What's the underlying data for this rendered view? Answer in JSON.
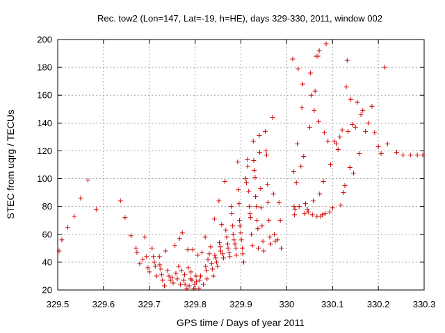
{
  "chart_data": {
    "type": "scatter",
    "title": "Rec. tow2 (Lon=147, Lat=-19, h=HE), days 329-330, 2011, window 002",
    "xlabel": "GPS time / Days of year 2011",
    "ylabel": "STEC from uqrg / TECUs",
    "xlim": [
      329.5,
      330.3
    ],
    "ylim": [
      20,
      200
    ],
    "xticks": [
      329.5,
      329.6,
      329.7,
      329.8,
      329.9,
      330,
      330.1,
      330.2,
      330.3
    ],
    "xtick_labels": [
      "329.5",
      "329.6",
      "329.7",
      "329.8",
      "329.9",
      "330",
      "330.1",
      "330.2",
      "330.3"
    ],
    "yticks": [
      20,
      40,
      60,
      80,
      100,
      120,
      140,
      160,
      180,
      200
    ],
    "ytick_labels": [
      "20",
      "40",
      "60",
      "80",
      "100",
      "120",
      "140",
      "160",
      "180",
      "200"
    ],
    "grid": true,
    "marker": "+",
    "color": "#cc0000",
    "points": [
      [
        329.503,
        48
      ],
      [
        329.509,
        56
      ],
      [
        329.522,
        65
      ],
      [
        329.536,
        73
      ],
      [
        329.55,
        86
      ],
      [
        329.566,
        99
      ],
      [
        329.584,
        78
      ],
      [
        329.637,
        84
      ],
      [
        329.647,
        72
      ],
      [
        329.66,
        59
      ],
      [
        329.671,
        50
      ],
      [
        329.673,
        47
      ],
      [
        329.679,
        39
      ],
      [
        329.686,
        42
      ],
      [
        329.69,
        58
      ],
      [
        329.694,
        44
      ],
      [
        329.697,
        36
      ],
      [
        329.7,
        33
      ],
      [
        329.706,
        50
      ],
      [
        329.709,
        44
      ],
      [
        329.711,
        40
      ],
      [
        329.713,
        37
      ],
      [
        329.716,
        30
      ],
      [
        329.722,
        44
      ],
      [
        329.723,
        38
      ],
      [
        329.725,
        35
      ],
      [
        329.727,
        31
      ],
      [
        329.729,
        27
      ],
      [
        329.733,
        23
      ],
      [
        329.736,
        48
      ],
      [
        329.74,
        34
      ],
      [
        329.743,
        30
      ],
      [
        329.746,
        27
      ],
      [
        329.75,
        29
      ],
      [
        329.752,
        25
      ],
      [
        329.756,
        52
      ],
      [
        329.758,
        32
      ],
      [
        329.761,
        28
      ],
      [
        329.764,
        37
      ],
      [
        329.766,
        57
      ],
      [
        329.768,
        24
      ],
      [
        329.77,
        34
      ],
      [
        329.772,
        61
      ],
      [
        329.775,
        27
      ],
      [
        329.777,
        31
      ],
      [
        329.778,
        24
      ],
      [
        329.782,
        21
      ],
      [
        329.784,
        49
      ],
      [
        329.785,
        36
      ],
      [
        329.787,
        23
      ],
      [
        329.79,
        28
      ],
      [
        329.791,
        33
      ],
      [
        329.793,
        27
      ],
      [
        329.795,
        49
      ],
      [
        329.797,
        21
      ],
      [
        329.799,
        24
      ],
      [
        329.802,
        30
      ],
      [
        329.803,
        26
      ],
      [
        329.806,
        45
      ],
      [
        329.808,
        21
      ],
      [
        329.81,
        27
      ],
      [
        329.812,
        30
      ],
      [
        329.815,
        47
      ],
      [
        329.818,
        24
      ],
      [
        329.822,
        58
      ],
      [
        329.823,
        37
      ],
      [
        329.825,
        34
      ],
      [
        329.826,
        28
      ],
      [
        329.828,
        42
      ],
      [
        329.831,
        46
      ],
      [
        329.834,
        51
      ],
      [
        329.836,
        39
      ],
      [
        329.838,
        35
      ],
      [
        329.84,
        30
      ],
      [
        329.842,
        71
      ],
      [
        329.843,
        45
      ],
      [
        329.845,
        43
      ],
      [
        329.847,
        40
      ],
      [
        329.849,
        37
      ],
      [
        329.852,
        84
      ],
      [
        329.853,
        54
      ],
      [
        329.855,
        51
      ],
      [
        329.856,
        48
      ],
      [
        329.858,
        67
      ],
      [
        329.86,
        46
      ],
      [
        329.862,
        43
      ],
      [
        329.865,
        98
      ],
      [
        329.867,
        63
      ],
      [
        329.869,
        58
      ],
      [
        329.871,
        53
      ],
      [
        329.872,
        50
      ],
      [
        329.874,
        47
      ],
      [
        329.876,
        44
      ],
      [
        329.879,
        80
      ],
      [
        329.88,
        75
      ],
      [
        329.882,
        66
      ],
      [
        329.883,
        60
      ],
      [
        329.885,
        56
      ],
      [
        329.887,
        53
      ],
      [
        329.889,
        50
      ],
      [
        329.89,
        45
      ],
      [
        329.893,
        112
      ],
      [
        329.894,
        92
      ],
      [
        329.896,
        82
      ],
      [
        329.897,
        70
      ],
      [
        329.898,
        66
      ],
      [
        329.9,
        61
      ],
      [
        329.901,
        56
      ],
      [
        329.903,
        50
      ],
      [
        329.904,
        46
      ],
      [
        329.906,
        40
      ],
      [
        329.91,
        100
      ],
      [
        329.912,
        97
      ],
      [
        329.914,
        114
      ],
      [
        329.915,
        109
      ],
      [
        329.917,
        91
      ],
      [
        329.918,
        80
      ],
      [
        329.92,
        75
      ],
      [
        329.921,
        72
      ],
      [
        329.923,
        60
      ],
      [
        329.925,
        52
      ],
      [
        329.927,
        127
      ],
      [
        329.928,
        113
      ],
      [
        329.929,
        106
      ],
      [
        329.931,
        101
      ],
      [
        329.932,
        87
      ],
      [
        329.934,
        80
      ],
      [
        329.935,
        70
      ],
      [
        329.937,
        64
      ],
      [
        329.938,
        50
      ],
      [
        329.94,
        131
      ],
      [
        329.941,
        119
      ],
      [
        329.943,
        93
      ],
      [
        329.944,
        79
      ],
      [
        329.946,
        66
      ],
      [
        329.948,
        55
      ],
      [
        329.95,
        48
      ],
      [
        329.953,
        134
      ],
      [
        329.955,
        120
      ],
      [
        329.956,
        117
      ],
      [
        329.958,
        96
      ],
      [
        329.959,
        83
      ],
      [
        329.961,
        70
      ],
      [
        329.963,
        58
      ],
      [
        329.965,
        53
      ],
      [
        329.969,
        144
      ],
      [
        329.971,
        89
      ],
      [
        329.973,
        60
      ],
      [
        329.975,
        55
      ],
      [
        329.98,
        56
      ],
      [
        329.983,
        83
      ],
      [
        329.986,
        70
      ],
      [
        329.988,
        50
      ],
      [
        330.013,
        186
      ],
      [
        330.015,
        105
      ],
      [
        330.016,
        80
      ],
      [
        330.017,
        74
      ],
      [
        330.018,
        78
      ],
      [
        330.021,
        97
      ],
      [
        330.023,
        125
      ],
      [
        330.025,
        179
      ],
      [
        330.027,
        80
      ],
      [
        330.031,
        109
      ],
      [
        330.033,
        151
      ],
      [
        330.035,
        168
      ],
      [
        330.037,
        116
      ],
      [
        330.039,
        75
      ],
      [
        330.041,
        82
      ],
      [
        330.045,
        78
      ],
      [
        330.047,
        76
      ],
      [
        330.05,
        137
      ],
      [
        330.052,
        176
      ],
      [
        330.054,
        160
      ],
      [
        330.056,
        74
      ],
      [
        330.058,
        84
      ],
      [
        330.06,
        149
      ],
      [
        330.062,
        163
      ],
      [
        330.064,
        188
      ],
      [
        330.066,
        73
      ],
      [
        330.068,
        188
      ],
      [
        330.07,
        141
      ],
      [
        330.071,
        192
      ],
      [
        330.072,
        89
      ],
      [
        330.074,
        73
      ],
      [
        330.078,
        74
      ],
      [
        330.08,
        98
      ],
      [
        330.082,
        133
      ],
      [
        330.084,
        75
      ],
      [
        330.086,
        197
      ],
      [
        330.09,
        127
      ],
      [
        330.094,
        76
      ],
      [
        330.096,
        110
      ],
      [
        330.1,
        79
      ],
      [
        330.104,
        127
      ],
      [
        330.108,
        125
      ],
      [
        330.112,
        121
      ],
      [
        330.116,
        130
      ],
      [
        330.118,
        81
      ],
      [
        330.121,
        135
      ],
      [
        330.124,
        90
      ],
      [
        330.127,
        95
      ],
      [
        330.13,
        166
      ],
      [
        330.132,
        185
      ],
      [
        330.134,
        134
      ],
      [
        330.138,
        108
      ],
      [
        330.14,
        157
      ],
      [
        330.143,
        139
      ],
      [
        330.146,
        104
      ],
      [
        330.15,
        137
      ],
      [
        330.154,
        155
      ],
      [
        330.158,
        118
      ],
      [
        330.162,
        146
      ],
      [
        330.166,
        149
      ],
      [
        330.172,
        134
      ],
      [
        330.178,
        140
      ],
      [
        330.186,
        152
      ],
      [
        330.192,
        133
      ],
      [
        330.2,
        123
      ],
      [
        330.206,
        118
      ],
      [
        330.214,
        180
      ],
      [
        330.22,
        125
      ],
      [
        330.24,
        119
      ],
      [
        330.254,
        117
      ],
      [
        330.27,
        117
      ],
      [
        330.285,
        117
      ],
      [
        330.297,
        117
      ]
    ]
  }
}
